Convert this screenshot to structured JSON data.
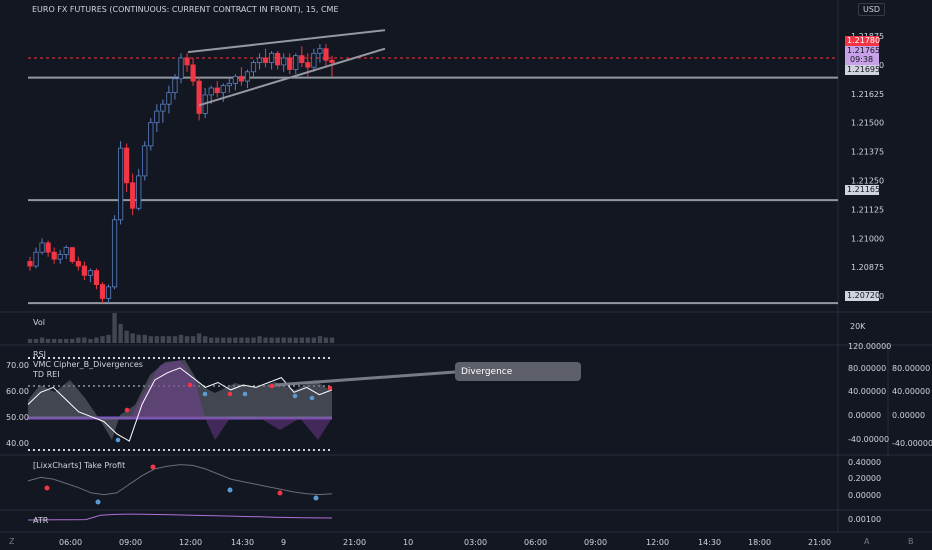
{
  "header": {
    "title": "EURO FX FUTURES (CONTINUOUS: CURRENT CONTRACT IN FRONT), 15, CME",
    "currency": "USD"
  },
  "panes": {
    "vol": {
      "label": "Vol",
      "scale": [
        "20K"
      ]
    },
    "rsi": {
      "label": "RSI",
      "scale_left": [
        "70.00",
        "60.00",
        "50.00",
        "40.00"
      ]
    },
    "vmc": {
      "label": "VMC Cipher_B_Divergences",
      "scale": [
        "120.00000",
        "80.00000",
        "40.00000",
        "0.00000",
        "-40.00000"
      ],
      "scale_right2": [
        "80.00000",
        "40.00000",
        "0.00000",
        "-40.00000"
      ]
    },
    "tdrei": {
      "label": "TD REI"
    },
    "takeprofit": {
      "label": "[LixxCharts] Take Profit",
      "scale": [
        "0.40000",
        "0.20000",
        "0.00000"
      ]
    },
    "atr": {
      "label": "ATR",
      "scale": [
        "0.00100"
      ]
    }
  },
  "annotation": {
    "divergence": "Divergence"
  },
  "price_badges": {
    "last": "1.21780",
    "current": "1.21765",
    "countdown": "09:38",
    "level1": "1.21695",
    "level2": "1.21165",
    "level3": "1.20720"
  },
  "bottom": {
    "z_label": "Z",
    "a_label": "A",
    "b_label": "B"
  },
  "chart_data": {
    "type": "candlestick",
    "title": "EURO FX FUTURES (CONTINUOUS: CURRENT CONTRACT IN FRONT), 15, CME",
    "y_ticks": [
      "1.21875",
      "1.21750",
      "1.21625",
      "1.21500",
      "1.21375",
      "1.21250",
      "1.21125",
      "1.21000",
      "1.20875",
      "1.20750"
    ],
    "x_ticks": [
      "06:00",
      "09:00",
      "12:00",
      "14:30",
      "9",
      "21:00",
      "10",
      "03:00",
      "06:00",
      "09:00",
      "12:00",
      "14:30",
      "18:00",
      "21:00"
    ],
    "ylim": [
      1.2069,
      1.2197
    ],
    "horizontal_levels": [
      1.21695,
      1.21165,
      1.2072
    ],
    "dashed_level": 1.2178,
    "candles": [
      [
        1.209,
        1.2092,
        1.2086,
        1.2088
      ],
      [
        1.2088,
        1.2096,
        1.2087,
        1.2094
      ],
      [
        1.2094,
        1.21,
        1.2093,
        1.2098
      ],
      [
        1.2098,
        1.2099,
        1.2092,
        1.2094
      ],
      [
        1.2094,
        1.2096,
        1.2089,
        1.2091
      ],
      [
        1.2091,
        1.2095,
        1.2089,
        1.2093
      ],
      [
        1.2093,
        1.2097,
        1.2091,
        1.2096
      ],
      [
        1.2096,
        1.2096,
        1.2089,
        1.209
      ],
      [
        1.209,
        1.2092,
        1.2086,
        1.2088
      ],
      [
        1.2088,
        1.209,
        1.2082,
        1.2084
      ],
      [
        1.2084,
        1.2087,
        1.2081,
        1.2086
      ],
      [
        1.2086,
        1.2087,
        1.2078,
        1.208
      ],
      [
        1.208,
        1.2081,
        1.2072,
        1.2074
      ],
      [
        1.2074,
        1.208,
        1.2072,
        1.2079
      ],
      [
        1.2079,
        1.211,
        1.2078,
        1.2108
      ],
      [
        1.2108,
        1.2142,
        1.2106,
        1.2139
      ],
      [
        1.2139,
        1.2141,
        1.212,
        1.2124
      ],
      [
        1.2124,
        1.2128,
        1.211,
        1.2113
      ],
      [
        1.2113,
        1.213,
        1.2112,
        1.2127
      ],
      [
        1.2127,
        1.2142,
        1.2125,
        1.214
      ],
      [
        1.214,
        1.2152,
        1.2138,
        1.215
      ],
      [
        1.215,
        1.2158,
        1.2146,
        1.2155
      ],
      [
        1.2155,
        1.216,
        1.215,
        1.2158
      ],
      [
        1.2158,
        1.2166,
        1.2154,
        1.2163
      ],
      [
        1.2163,
        1.2171,
        1.216,
        1.2169
      ],
      [
        1.2169,
        1.218,
        1.2167,
        1.2178
      ],
      [
        1.2178,
        1.218,
        1.2172,
        1.2175
      ],
      [
        1.2175,
        1.2178,
        1.2166,
        1.2168
      ],
      [
        1.2168,
        1.217,
        1.2151,
        1.2154
      ],
      [
        1.2154,
        1.2165,
        1.2152,
        1.2162
      ],
      [
        1.2162,
        1.2166,
        1.2158,
        1.2165
      ],
      [
        1.2165,
        1.2168,
        1.2161,
        1.2163
      ],
      [
        1.2163,
        1.2167,
        1.2159,
        1.2166
      ],
      [
        1.2166,
        1.2169,
        1.2163,
        1.2167
      ],
      [
        1.2167,
        1.2171,
        1.2164,
        1.217
      ],
      [
        1.217,
        1.2174,
        1.2166,
        1.2168
      ],
      [
        1.2168,
        1.2173,
        1.2165,
        1.2172
      ],
      [
        1.2172,
        1.2177,
        1.217,
        1.2176
      ],
      [
        1.2176,
        1.218,
        1.2173,
        1.2178
      ],
      [
        1.2178,
        1.2182,
        1.2174,
        1.2176
      ],
      [
        1.2176,
        1.2181,
        1.2173,
        1.218
      ],
      [
        1.218,
        1.2181,
        1.2173,
        1.2175
      ],
      [
        1.2175,
        1.218,
        1.2172,
        1.2178
      ],
      [
        1.2178,
        1.218,
        1.2171,
        1.2173
      ],
      [
        1.2173,
        1.218,
        1.2171,
        1.2179
      ],
      [
        1.2179,
        1.2183,
        1.2174,
        1.2176
      ],
      [
        1.2176,
        1.218,
        1.217,
        1.2174
      ],
      [
        1.2174,
        1.2182,
        1.2172,
        1.218
      ],
      [
        1.218,
        1.2184,
        1.2176,
        1.2182
      ],
      [
        1.2182,
        1.2184,
        1.2174,
        1.2177
      ],
      [
        1.2177,
        1.2179,
        1.217,
        1.2176
      ]
    ],
    "volume": [
      3,
      3,
      4,
      3,
      3,
      3,
      3,
      3,
      4,
      4,
      3,
      4,
      5,
      6,
      22,
      14,
      9,
      7,
      6,
      6,
      5,
      5,
      5,
      5,
      5,
      6,
      5,
      5,
      7,
      5,
      4,
      4,
      4,
      4,
      4,
      4,
      4,
      4,
      5,
      4,
      4,
      4,
      4,
      4,
      4,
      4,
      4,
      4,
      5,
      4,
      4
    ],
    "take_profit": [
      0.2,
      0.24,
      0.22,
      0.17,
      0.12,
      0.06,
      0.04,
      0.06,
      0.16,
      0.26,
      0.34,
      0.37,
      0.39,
      0.38,
      0.34,
      0.28,
      0.22,
      0.19,
      0.16,
      0.13,
      0.1,
      0.07,
      0.05,
      0.04,
      0.05
    ],
    "atr": [
      0.0006,
      0.00061,
      0.00062,
      0.00062,
      0.00063,
      0.00095,
      0.00102,
      0.00104,
      0.00103,
      0.00101,
      0.00099,
      0.00097,
      0.00094,
      0.00092,
      0.00089,
      0.00086,
      0.00084,
      0.00081,
      0.00079,
      0.00077,
      0.00076,
      0.00075
    ],
    "rsi": [
      55,
      60,
      62,
      57,
      52,
      50,
      48,
      43,
      40,
      55,
      65,
      68,
      70,
      66,
      62,
      64,
      61,
      63,
      62,
      64,
      66,
      60,
      62,
      59,
      61
    ]
  }
}
